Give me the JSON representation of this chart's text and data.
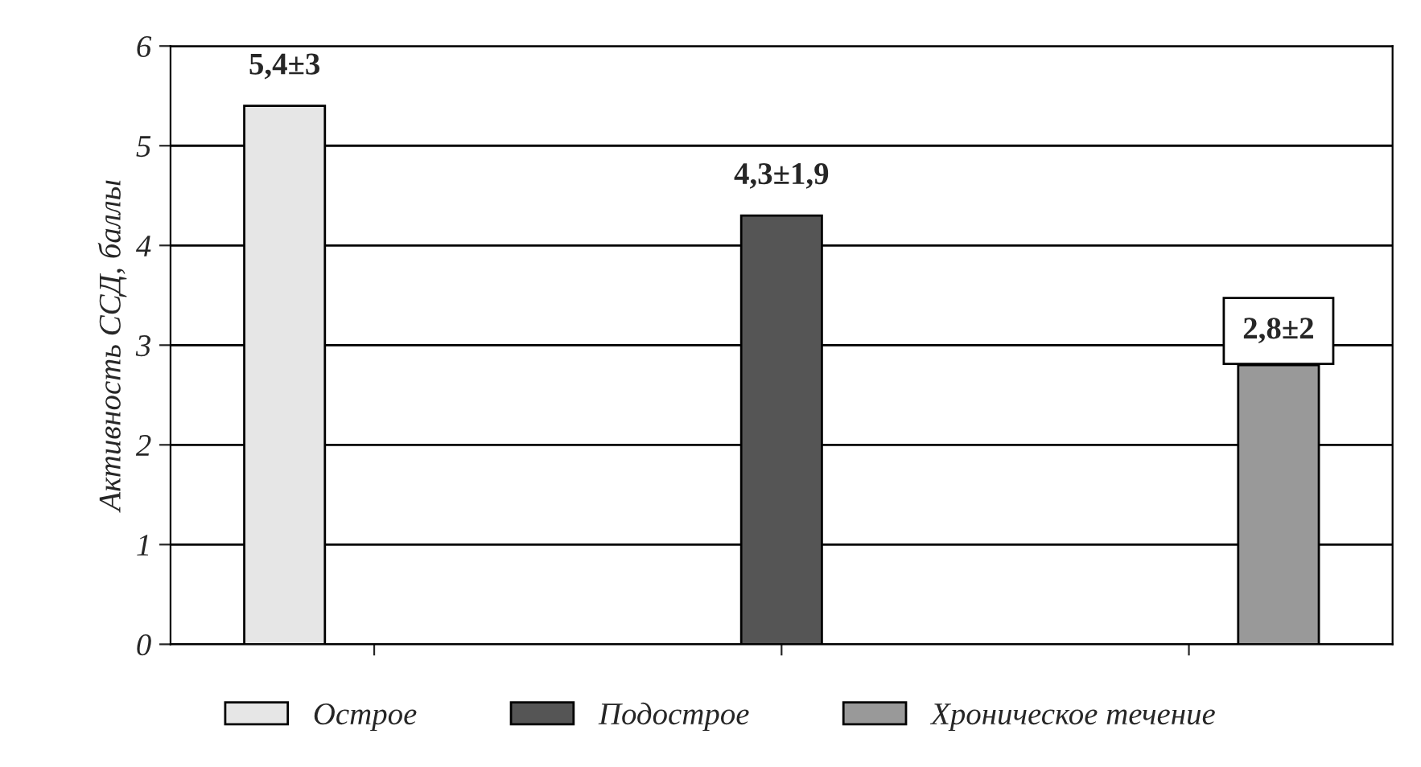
{
  "chart_data": {
    "type": "bar",
    "ylabel": "Активность ССД, баллы",
    "categories": [
      null,
      null,
      null
    ],
    "series": [
      {
        "name": "Острое",
        "color": "#e6e6e6",
        "values": [
          5.4,
          null,
          null
        ],
        "value_labels": [
          "5,4±3",
          null,
          null
        ]
      },
      {
        "name": "Подострое",
        "color": "#555555",
        "values": [
          null,
          4.3,
          null
        ],
        "value_labels": [
          null,
          "4,3±1,9",
          null
        ]
      },
      {
        "name": "Хроническое течение",
        "color": "#999999",
        "values": [
          null,
          null,
          2.8
        ],
        "value_labels": [
          null,
          null,
          "2,8±2"
        ]
      }
    ],
    "ylim": [
      0,
      6
    ],
    "yticks": [
      0,
      1,
      2,
      3,
      4,
      5,
      6
    ],
    "grid": "y",
    "legend": "bottom"
  }
}
